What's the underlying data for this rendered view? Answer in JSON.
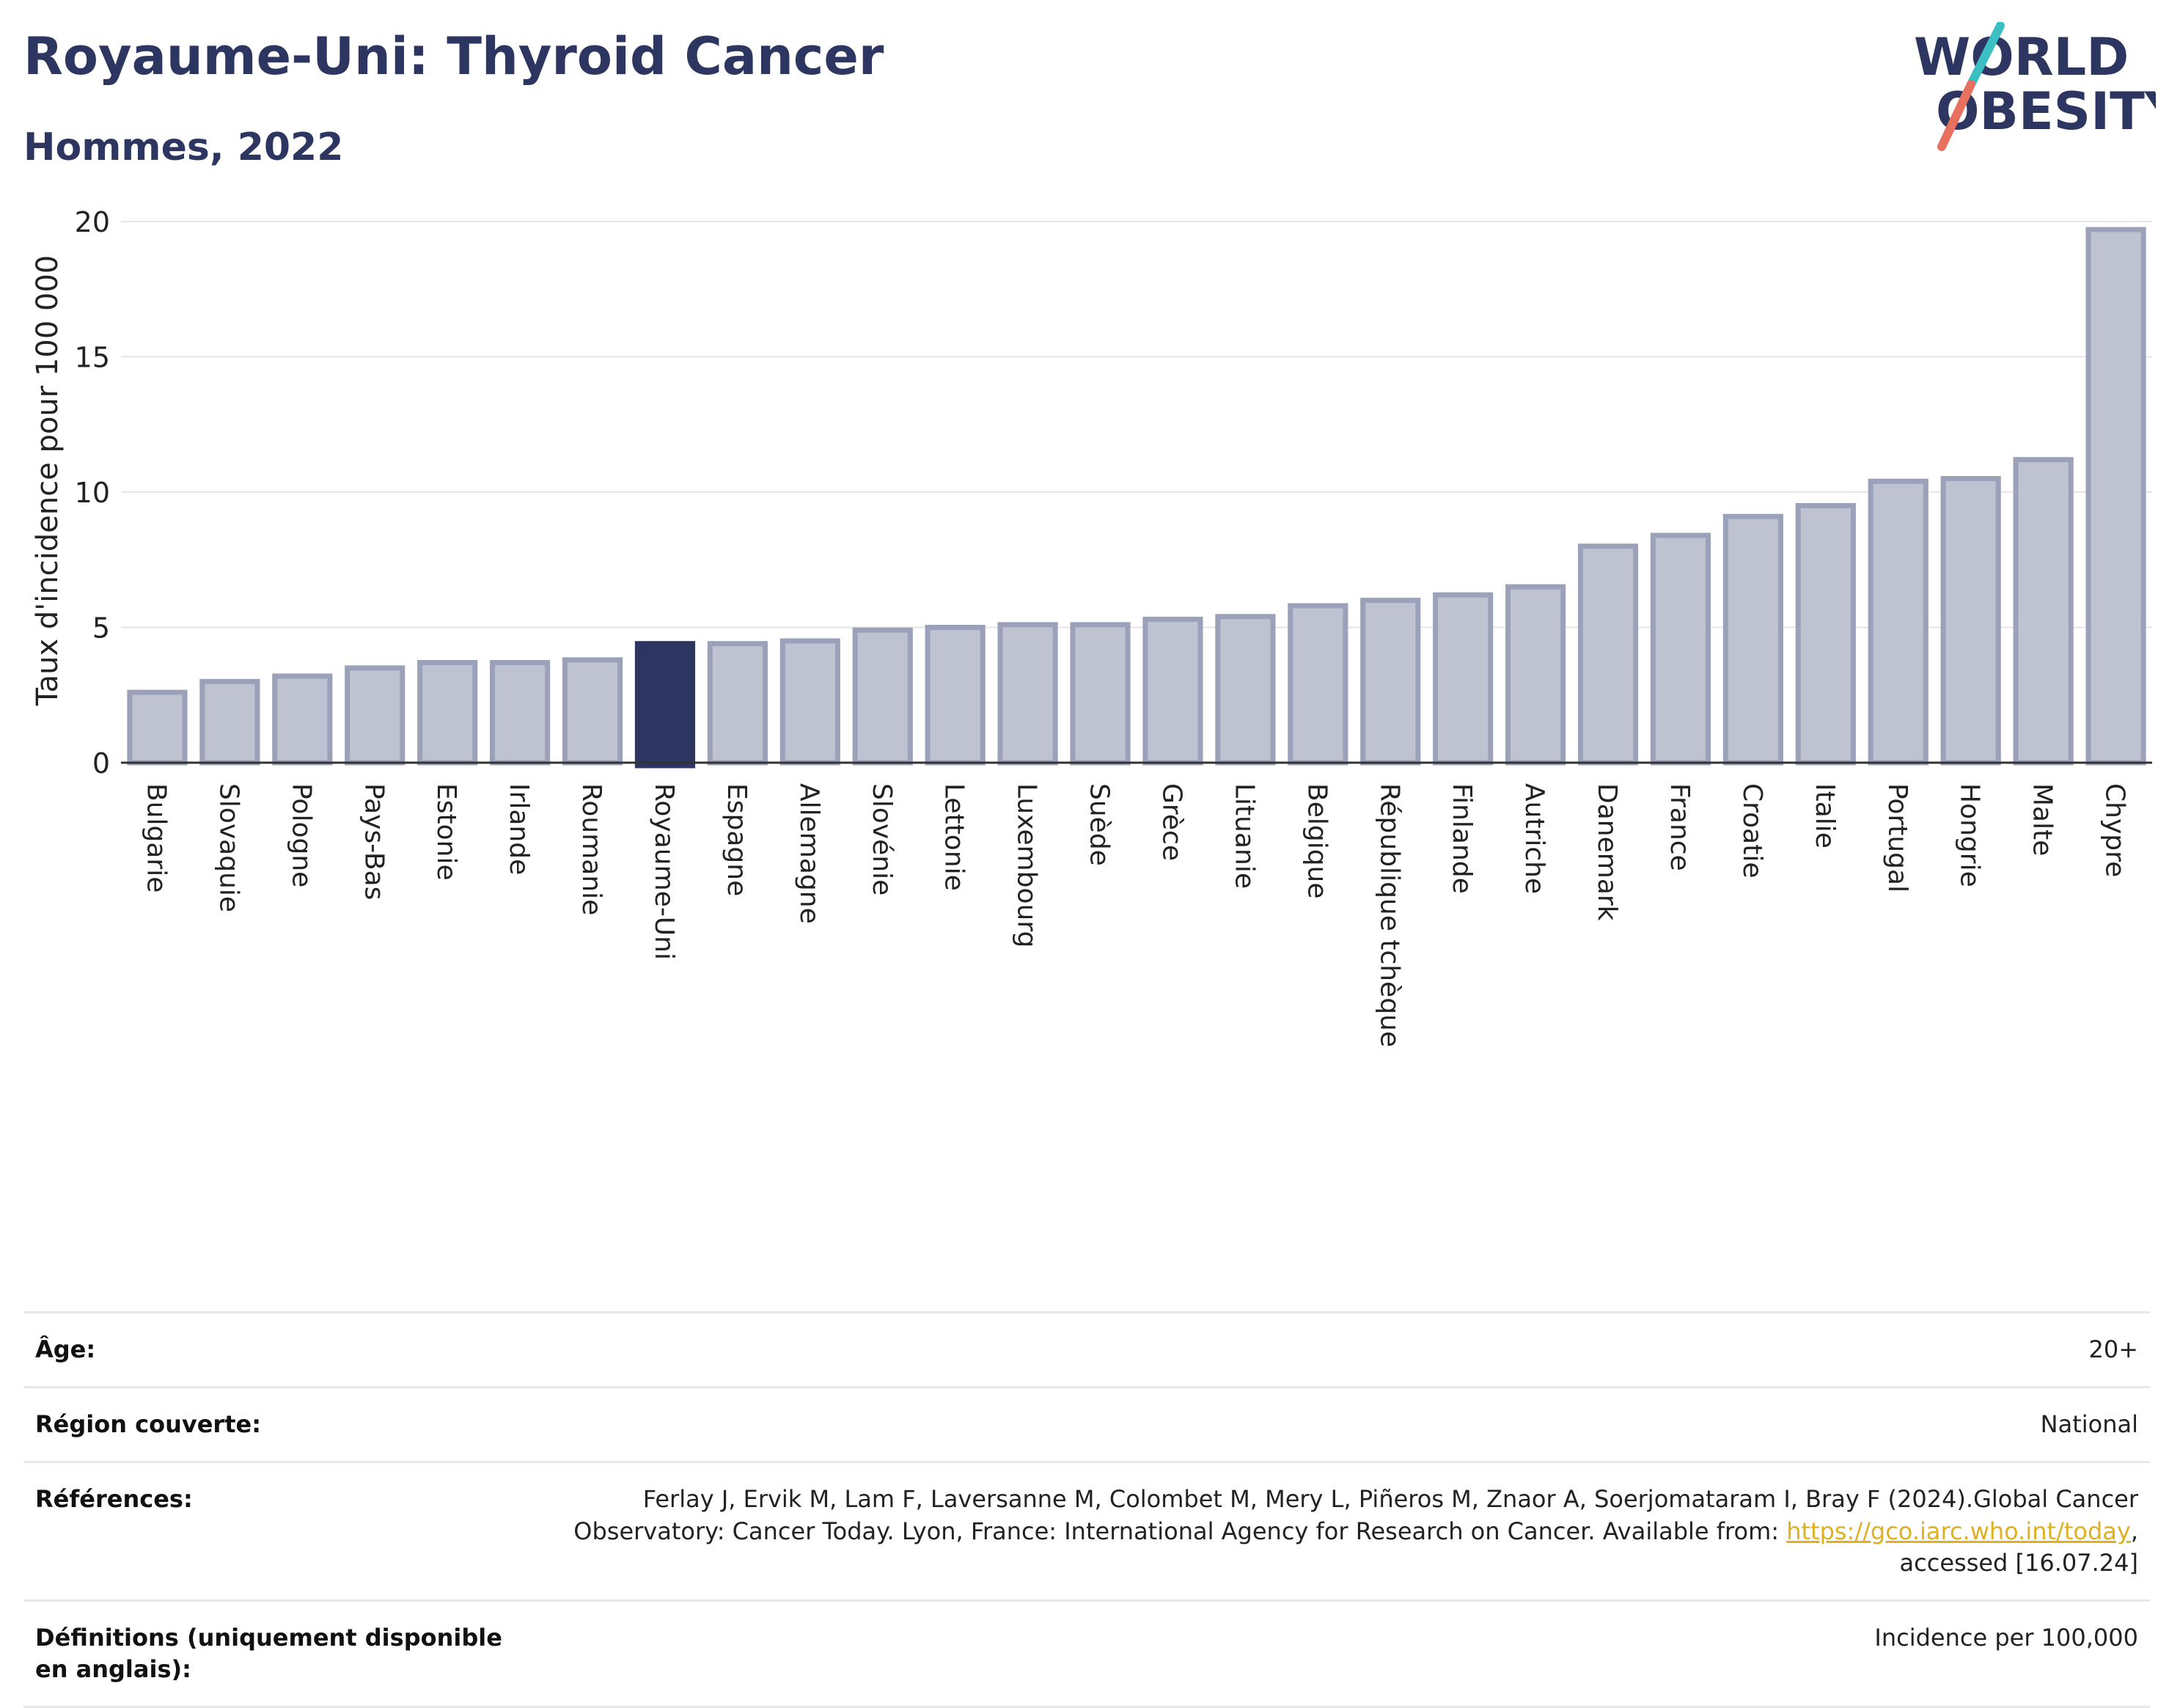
{
  "header": {
    "title": "Royaume-Uni: Thyroid Cancer",
    "subtitle": "Hommes, 2022"
  },
  "logo": {
    "line1": "WORLD",
    "line2": "OBESITY",
    "accent_teal": "#3cbfc3",
    "accent_coral": "#e8705e"
  },
  "colors": {
    "highlight": "#2d3561",
    "bar_fill": "#bfc2d0",
    "bar_stroke": "#9ca1ba",
    "text_dark": "#2d3561"
  },
  "chart_data": {
    "type": "bar",
    "title": "Royaume-Uni: Thyroid Cancer",
    "subtitle": "Hommes, 2022",
    "ylabel": "Taux d'incidence pour 100 000",
    "xlabel": "",
    "ylim": [
      0,
      20
    ],
    "yticks": [
      0,
      5,
      10,
      15,
      20
    ],
    "grid": true,
    "highlight": "Royaume-Uni",
    "categories": [
      "Bulgarie",
      "Slovaquie",
      "Pologne",
      "Pays-Bas",
      "Estonie",
      "Irlande",
      "Roumanie",
      "Royaume-Uni",
      "Espagne",
      "Allemagne",
      "Slovénie",
      "Lettonie",
      "Luxembourg",
      "Suède",
      "Grèce",
      "Lituanie",
      "Belgique",
      "République tchèque",
      "Finlande",
      "Autriche",
      "Danemark",
      "France",
      "Croatie",
      "Italie",
      "Portugal",
      "Hongrie",
      "Malte",
      "Chypre"
    ],
    "values": [
      2.6,
      3.0,
      3.2,
      3.5,
      3.7,
      3.7,
      3.8,
      4.4,
      4.4,
      4.5,
      4.9,
      5.0,
      5.1,
      5.1,
      5.3,
      5.4,
      5.8,
      6.0,
      6.2,
      6.5,
      8.0,
      8.4,
      9.1,
      9.5,
      10.4,
      10.5,
      11.2,
      19.7
    ]
  },
  "info": {
    "rows": [
      {
        "key": "Âge:",
        "value": "20+"
      },
      {
        "key": "Région couverte:",
        "value": "National"
      },
      {
        "key": "Références:",
        "value_pre": "Ferlay J, Ervik M, Lam F, Laversanne M, Colombet M, Mery L, Piñeros M, Znaor A, Soerjomataram I, Bray F (2024).Global Cancer Observatory: Cancer Today. Lyon, France: International Agency for Research on Cancer. Available from: ",
        "link": "https://gco.iarc.who.int/today",
        "value_post": ", accessed [16.07.24]"
      },
      {
        "key": "Définitions (uniquement disponible en anglais):",
        "value": "Incidence per 100,000"
      }
    ]
  }
}
